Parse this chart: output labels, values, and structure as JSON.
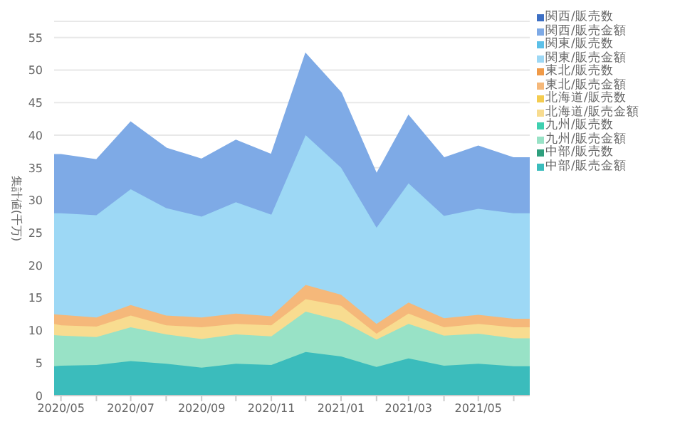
{
  "chart_data": {
    "type": "area",
    "stacked": true,
    "ylabel": "集計値(千万)",
    "x": [
      "2020-04-25",
      "2020-05",
      "2020-06",
      "2020-07",
      "2020-08",
      "2020-09",
      "2020-10",
      "2020-11",
      "2020-12",
      "2021-01",
      "2021-02",
      "2021-03",
      "2021-04",
      "2021-05",
      "2021-06",
      "2021-06-15"
    ],
    "xlim": [
      "2020-04-25",
      "2021-06-15"
    ],
    "xticks": [
      {
        "value": "2020-05",
        "label": "2020/05"
      },
      {
        "value": "2020-06",
        "label": null
      },
      {
        "value": "2020-07",
        "label": "2020/07"
      },
      {
        "value": "2020-08",
        "label": null
      },
      {
        "value": "2020-09",
        "label": "2020/09"
      },
      {
        "value": "2020-10",
        "label": null
      },
      {
        "value": "2020-11",
        "label": "2020/11"
      },
      {
        "value": "2020-12",
        "label": null
      },
      {
        "value": "2021-01",
        "label": "2021/01"
      },
      {
        "value": "2021-02",
        "label": null
      },
      {
        "value": "2021-03",
        "label": "2021/03"
      },
      {
        "value": "2021-04",
        "label": null
      },
      {
        "value": "2021-05",
        "label": "2021/05"
      },
      {
        "value": "2021-06",
        "label": null
      }
    ],
    "ylim": [
      0,
      57.5
    ],
    "yticks": [
      0,
      5,
      10,
      15,
      20,
      25,
      30,
      35,
      40,
      45,
      50,
      55
    ],
    "grid": "y",
    "legend": "right",
    "series": [
      {
        "name": "中部/販売金額",
        "color": "#3bbcbc",
        "values": [
          4.5,
          4.6,
          4.7,
          5.3,
          4.9,
          4.3,
          4.9,
          4.7,
          6.7,
          6,
          4.4,
          5.7,
          4.6,
          4.9,
          4.5,
          4.5
        ]
      },
      {
        "name": "中部/販売数",
        "color": "#2fa07e",
        "values": [
          null,
          null,
          null,
          null,
          null,
          null,
          null,
          null,
          null,
          null,
          null,
          null,
          null,
          null,
          null,
          null
        ]
      },
      {
        "name": "九州/販売金額",
        "color": "#98e2c6",
        "values": [
          4.8,
          4.6,
          4.3,
          5.2,
          4.5,
          4.4,
          4.5,
          4.4,
          6.2,
          5.5,
          4.2,
          5.3,
          4.6,
          4.6,
          4.3,
          4.3
        ]
      },
      {
        "name": "九州/販売数",
        "color": "#3fd0b0",
        "values": [
          null,
          null,
          null,
          null,
          null,
          null,
          null,
          null,
          null,
          null,
          null,
          null,
          null,
          null,
          null,
          null
        ]
      },
      {
        "name": "北海道/販売金額",
        "color": "#f8dc90",
        "values": [
          1.7,
          1.6,
          1.6,
          1.8,
          1.4,
          1.8,
          1.6,
          1.7,
          1.9,
          2.3,
          0.9,
          1.6,
          1.3,
          1.5,
          1.7,
          1.7
        ]
      },
      {
        "name": "北海道/販売数",
        "color": "#f4cc50",
        "values": [
          null,
          null,
          null,
          null,
          null,
          null,
          null,
          null,
          null,
          null,
          null,
          null,
          null,
          null,
          null,
          null
        ]
      },
      {
        "name": "東北/販売金額",
        "color": "#f5b87a",
        "values": [
          1.5,
          1.6,
          1.4,
          1.6,
          1.5,
          1.5,
          1.6,
          1.4,
          2.2,
          1.7,
          1.5,
          1.7,
          1.4,
          1.4,
          1.3,
          1.3
        ]
      },
      {
        "name": "東北/販売数",
        "color": "#f09a48",
        "values": [
          null,
          null,
          null,
          null,
          null,
          null,
          null,
          null,
          null,
          null,
          null,
          null,
          null,
          null,
          null,
          null
        ]
      },
      {
        "name": "関東/販売金額",
        "color": "#9dd8f5",
        "values": [
          15.5,
          15.6,
          15.7,
          17.8,
          16.5,
          15.5,
          17.1,
          15.6,
          23,
          19.5,
          14.8,
          18.3,
          15.7,
          16.3,
          16.2,
          16.2
        ]
      },
      {
        "name": "関東/販売数",
        "color": "#5cc0e8",
        "values": [
          null,
          null,
          null,
          null,
          null,
          null,
          null,
          null,
          null,
          null,
          null,
          null,
          null,
          null,
          null,
          null
        ]
      },
      {
        "name": "関西/販売金額",
        "color": "#7eaae6",
        "values": [
          9,
          9,
          8.5,
          10.3,
          9.2,
          8.8,
          9.5,
          9.2,
          12.5,
          11.5,
          8.2,
          10.4,
          8.9,
          9.6,
          8.5,
          8.5
        ]
      },
      {
        "name": "関西/販売数",
        "color": "#3d6fc4",
        "values": [
          null,
          null,
          null,
          null,
          null,
          null,
          null,
          null,
          null,
          null,
          null,
          null,
          null,
          null,
          null,
          null
        ]
      }
    ]
  }
}
